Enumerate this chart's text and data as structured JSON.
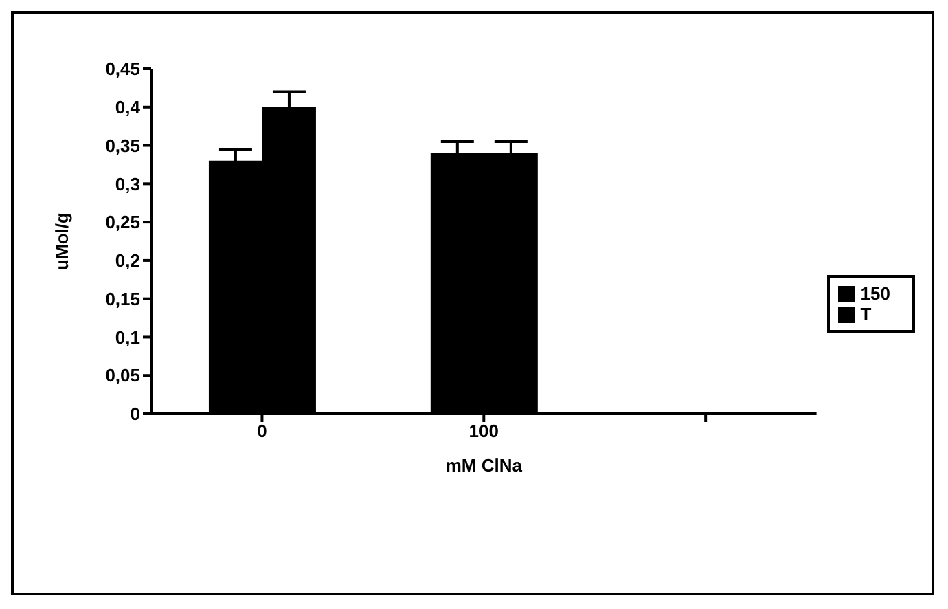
{
  "chart_data": {
    "type": "bar",
    "xlabel": "mM ClNa",
    "ylabel": "uMol/g",
    "categories": [
      "0",
      "100",
      null
    ],
    "series": [
      {
        "name": "150",
        "color": "#000000",
        "values": [
          0.33,
          0.34,
          null
        ],
        "errors": [
          0.015,
          0.015,
          null
        ]
      },
      {
        "name": "T",
        "color": "#000000",
        "values": [
          0.4,
          0.34,
          null
        ],
        "errors": [
          0.02,
          0.015,
          null
        ]
      }
    ],
    "ylim": [
      0,
      0.45
    ],
    "yticks": [
      0,
      {
        "value": 0.05,
        "label": "0,05"
      },
      {
        "value": 0.1,
        "label": "0,1"
      },
      {
        "value": 0.15,
        "label": "0,15"
      },
      {
        "value": 0.2,
        "label": "0,2"
      },
      {
        "value": 0.25,
        "label": "0,25"
      },
      {
        "value": 0.3,
        "label": "0,3"
      },
      {
        "value": 0.35,
        "label": "0,35"
      },
      {
        "value": 0.4,
        "label": "0,4"
      },
      {
        "value": 0.45,
        "label": "0,45"
      }
    ],
    "grid": false,
    "legend": "right"
  }
}
